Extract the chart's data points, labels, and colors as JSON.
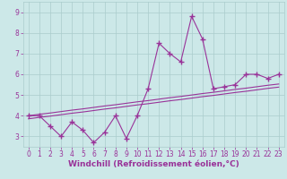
{
  "title": "",
  "xlabel": "Windchill (Refroidissement éolien,°C)",
  "ylabel": "",
  "background_color": "#cce8e8",
  "line_color": "#993399",
  "grid_color": "#aacccc",
  "x_data": [
    0,
    1,
    2,
    3,
    4,
    5,
    6,
    7,
    8,
    9,
    10,
    11,
    12,
    13,
    14,
    15,
    16,
    17,
    18,
    19,
    20,
    21,
    22,
    23
  ],
  "y_main": [
    4.0,
    4.0,
    3.5,
    3.0,
    3.7,
    3.3,
    2.7,
    3.2,
    4.0,
    2.9,
    4.0,
    5.3,
    7.5,
    7.0,
    6.6,
    8.8,
    7.7,
    5.3,
    5.4,
    5.5,
    6.0,
    6.0,
    5.8,
    6.0
  ],
  "y_line1": [
    4.0,
    4.07,
    4.13,
    4.2,
    4.27,
    4.33,
    4.4,
    4.47,
    4.53,
    4.6,
    4.67,
    4.73,
    4.8,
    4.87,
    4.93,
    5.0,
    5.07,
    5.13,
    5.2,
    5.27,
    5.33,
    5.4,
    5.47,
    5.53
  ],
  "y_line2": [
    3.85,
    3.92,
    3.98,
    4.05,
    4.12,
    4.18,
    4.25,
    4.32,
    4.38,
    4.45,
    4.52,
    4.58,
    4.65,
    4.72,
    4.78,
    4.85,
    4.92,
    4.98,
    5.05,
    5.12,
    5.18,
    5.25,
    5.32,
    5.38
  ],
  "ylim": [
    2.5,
    9.5
  ],
  "xlim": [
    -0.5,
    23.5
  ],
  "yticks": [
    3,
    4,
    5,
    6,
    7,
    8,
    9
  ],
  "xticks": [
    0,
    1,
    2,
    3,
    4,
    5,
    6,
    7,
    8,
    9,
    10,
    11,
    12,
    13,
    14,
    15,
    16,
    17,
    18,
    19,
    20,
    21,
    22,
    23
  ],
  "marker": "+",
  "markersize": 4,
  "markeredgewidth": 1.0,
  "linewidth": 0.8,
  "xlabel_fontsize": 6.5,
  "tick_fontsize": 5.5,
  "fig_width": 3.2,
  "fig_height": 2.0,
  "dpi": 100
}
